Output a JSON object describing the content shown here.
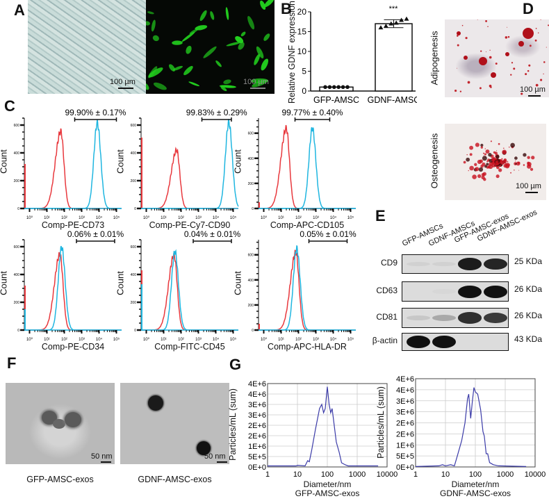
{
  "panels": {
    "a": "A",
    "b": "B",
    "c": "C",
    "d": "D",
    "e": "E",
    "f": "F",
    "g": "G"
  },
  "panel_a": {
    "scalebar_1": "100 µm",
    "scalebar_2": "100 µm"
  },
  "panel_d": {
    "top_label": "Adipogenesis",
    "bottom_label": "Osteogenesis",
    "scalebar_1": "100 µm",
    "scalebar_2": "100 µm"
  },
  "panel_e": {
    "columns": [
      "GFP-AMSCs",
      "GDNF-AMSCs",
      "GFP-AMSC-exos",
      "GDNF-AMSC-exos"
    ],
    "rows": [
      {
        "label": "CD9",
        "size": "25 KDa",
        "band_intensity": [
          0.05,
          0.05,
          0.95,
          0.9
        ]
      },
      {
        "label": "CD63",
        "size": "26 KDa",
        "band_intensity": [
          0.0,
          0.02,
          1.0,
          1.0
        ]
      },
      {
        "label": "CD81",
        "size": "26 KDa",
        "band_intensity": [
          0.1,
          0.25,
          0.85,
          0.8
        ]
      },
      {
        "label": "β-actin",
        "size": "43 KDa",
        "band_intensity": [
          1.0,
          1.0,
          0.0,
          0.0
        ]
      }
    ]
  },
  "panel_f": {
    "caption_1": "GFP-AMSC-exos",
    "caption_2": "GDNF-AMSC-exos",
    "scalebar_1": "50 nm",
    "scalebar_2": "50 nm"
  },
  "colors": {
    "red": "#e8383d",
    "cyan": "#1fb6e0",
    "nta": "#3b3ba8",
    "fluorescence": "#22d01e"
  },
  "chart_data": [
    {
      "id": "B",
      "type": "bar",
      "ylabel": "Relative GDNF expression",
      "categories": [
        "GFP-AMSC",
        "GDNF-AMSC"
      ],
      "values": [
        1.0,
        17.0
      ],
      "error": [
        0.05,
        1.0
      ],
      "points": [
        [
          1,
          1,
          1,
          1,
          1,
          1
        ],
        [
          16.0,
          16.4,
          17.0,
          17.2,
          17.9,
          18.2
        ]
      ],
      "point_markers": [
        "circle",
        "triangle"
      ],
      "annotation": "***",
      "ylim": [
        0,
        20
      ],
      "yticks": [
        "0",
        "5",
        "10",
        "15",
        "20"
      ]
    },
    {
      "id": "C",
      "type": "area",
      "subtype": "flow-cytometry histograms",
      "ylabel": "Count",
      "xticks": [
        "10⁰",
        "10¹",
        "10²",
        "10³",
        "10⁴",
        "10⁵"
      ],
      "panels": [
        {
          "xlabel": "Comp-PE-CD73",
          "gate_label": "99.90% ± 0.17%",
          "gate": [
            2.6,
            5.0
          ],
          "ylim": [
            0,
            650
          ],
          "yticks": [
            "0",
            "200",
            "400",
            "600"
          ],
          "series": [
            {
              "color": "red",
              "mode_log10": 1.8,
              "peak_count": 555,
              "edge_count": 320
            },
            {
              "color": "cyan",
              "mode_log10": 3.9,
              "peak_count": 615,
              "edge_count": 0
            }
          ]
        },
        {
          "xlabel": "Comp-PE-Cy7-CD90",
          "gate_label": "99.83% ± 0.29%",
          "gate": [
            3.2,
            4.9
          ],
          "ylim": [
            0,
            650
          ],
          "yticks": [
            "0",
            "200",
            "400",
            "600"
          ],
          "series": [
            {
              "color": "red",
              "mode_log10": 1.75,
              "peak_count": 420,
              "edge_count": 510
            },
            {
              "color": "cyan",
              "mode_log10": 4.75,
              "peak_count": 620,
              "edge_count": 0
            }
          ]
        },
        {
          "xlabel": "Comp-APC-CD105",
          "gate_label": "99.77% ± 0.40%",
          "gate": [
            1.8,
            3.8
          ],
          "ylim": [
            0,
            720
          ],
          "yticks": [
            "0",
            "200",
            "400",
            "600"
          ],
          "series": [
            {
              "color": "red",
              "mode_log10": 1.3,
              "peak_count": 640,
              "edge_count": 50
            },
            {
              "color": "cyan",
              "mode_log10": 2.8,
              "peak_count": 640,
              "edge_count": 0
            }
          ]
        },
        {
          "xlabel": "Comp-PE-CD34",
          "gate_label": "0.06% ± 0.01%",
          "gate": [
            2.7,
            4.9
          ],
          "ylim": [
            0,
            650
          ],
          "yticks": [
            "0",
            "200",
            "400",
            "600"
          ],
          "series": [
            {
              "color": "red",
              "mode_log10": 1.75,
              "peak_count": 545,
              "edge_count": 320
            },
            {
              "color": "cyan",
              "mode_log10": 1.85,
              "peak_count": 595,
              "edge_count": 150
            }
          ]
        },
        {
          "xlabel": "Comp-FITC-CD45",
          "gate_label": "0.04% ± 0.01%",
          "gate": [
            2.7,
            4.9
          ],
          "ylim": [
            0,
            650
          ],
          "yticks": [
            "0",
            "200",
            "400",
            "600"
          ],
          "series": [
            {
              "color": "red",
              "mode_log10": 1.6,
              "peak_count": 540,
              "edge_count": 430
            },
            {
              "color": "cyan",
              "mode_log10": 1.65,
              "peak_count": 565,
              "edge_count": 330
            }
          ]
        },
        {
          "xlabel": "Comp-APC-HLA-DR",
          "gate_label": "0.05% ± 0.01%",
          "gate": [
            2.6,
            4.8
          ],
          "ylim": [
            0,
            720
          ],
          "yticks": [
            "0",
            "200",
            "400",
            "600"
          ],
          "series": [
            {
              "color": "red",
              "mode_log10": 1.85,
              "peak_count": 620,
              "edge_count": 50
            },
            {
              "color": "cyan",
              "mode_log10": 1.9,
              "peak_count": 650,
              "edge_count": 0
            }
          ]
        }
      ]
    },
    {
      "id": "G",
      "type": "line",
      "xscale": "log",
      "ylabel": "Particles/mL (sum)",
      "xlabel": "Diameter/nm",
      "xlim": [
        1,
        10000
      ],
      "xticks": [
        "1",
        "10",
        "100",
        "1000",
        "10000"
      ],
      "ylim": [
        0,
        4000000
      ],
      "yticks": [
        "0E+0",
        "5E+5",
        "1E+6",
        "2E+6",
        "2E+6",
        "3E+6",
        "3E+6",
        "4E+6",
        "4E+6"
      ],
      "grid": true,
      "charts": [
        {
          "subtitle": "GFP-AMSC-exos",
          "x": [
            1,
            9,
            10,
            18,
            22,
            25,
            30,
            40,
            55,
            65,
            75,
            85,
            100,
            115,
            130,
            145,
            160,
            200,
            250,
            300,
            400,
            500,
            5000
          ],
          "y": [
            50000,
            50000,
            80000,
            50000,
            300000,
            250000,
            800000,
            1800000,
            2800000,
            3000000,
            2600000,
            2800000,
            3850000,
            3000000,
            2600000,
            2800000,
            2300000,
            1200000,
            700000,
            200000,
            100000,
            50000,
            50000
          ]
        },
        {
          "subtitle": "GDNF-AMSC-exos",
          "x": [
            1,
            6,
            8,
            10,
            15,
            20,
            25,
            35,
            45,
            55,
            60,
            70,
            80,
            90,
            100,
            120,
            150,
            180,
            200,
            230,
            260,
            300,
            400,
            600,
            5000
          ],
          "y": [
            20000,
            50000,
            100000,
            50000,
            100000,
            50000,
            500000,
            1200000,
            2000000,
            3100000,
            3300000,
            2200000,
            3000000,
            3600000,
            3400000,
            3300000,
            2600000,
            1600000,
            1400000,
            600000,
            600000,
            200000,
            100000,
            50000,
            20000
          ]
        }
      ]
    }
  ]
}
